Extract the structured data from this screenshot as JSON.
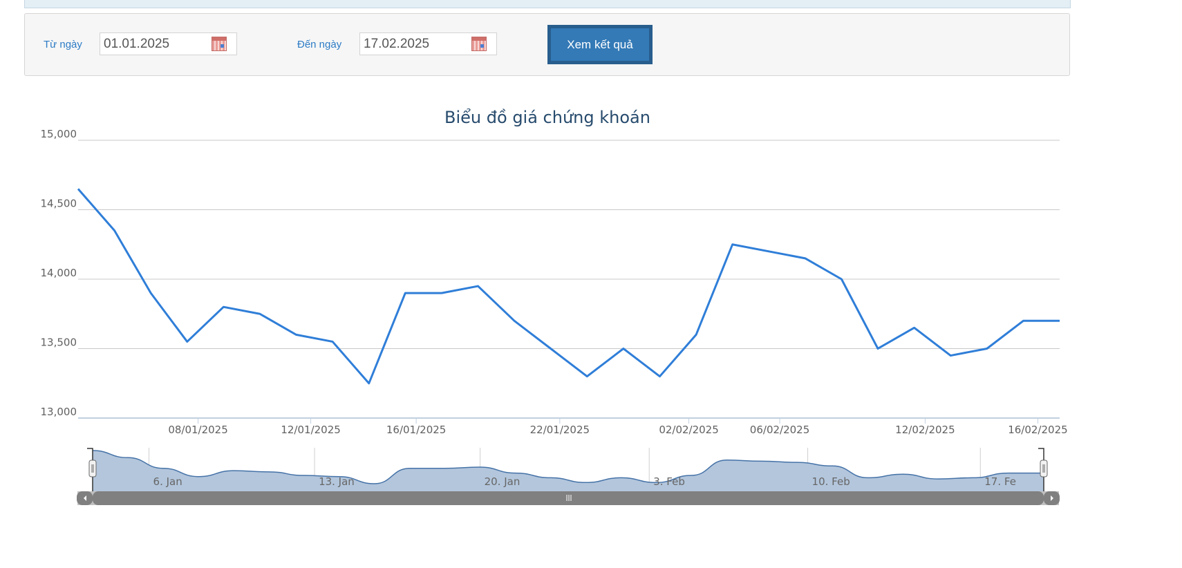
{
  "filter": {
    "from_label": "Từ ngày",
    "from_value": "01.01.2025",
    "to_label": "Đến ngày",
    "to_value": "17.02.2025",
    "submit_label": "Xem kết quả"
  },
  "chart_data": {
    "type": "line",
    "title": "Biểu đồ giá chứng khoán",
    "xlabel": "",
    "ylabel": "",
    "ylim": [
      13000,
      15000
    ],
    "y_ticks": [
      "13,000",
      "13,500",
      "14,000",
      "14,500",
      "15,000"
    ],
    "y_tick_values": [
      13000,
      13500,
      14000,
      14500,
      15000
    ],
    "grid": true,
    "line_color": "#2f7ed8",
    "x": [
      "02/01/2025",
      "03/01/2025",
      "06/01/2025",
      "07/01/2025",
      "08/01/2025",
      "09/01/2025",
      "10/01/2025",
      "13/01/2025",
      "14/01/2025",
      "15/01/2025",
      "16/01/2025",
      "17/01/2025",
      "20/01/2025",
      "21/01/2025",
      "22/01/2025",
      "23/01/2025",
      "24/01/2025",
      "03/02/2025",
      "04/02/2025",
      "05/02/2025",
      "06/02/2025",
      "07/02/2025",
      "10/02/2025",
      "11/02/2025",
      "12/02/2025",
      "13/02/2025",
      "14/02/2025",
      "17/02/2025"
    ],
    "values": [
      14650,
      14350,
      13900,
      13550,
      13800,
      13750,
      13600,
      13550,
      13250,
      13900,
      13900,
      13950,
      13700,
      13500,
      13300,
      13500,
      13300,
      13600,
      14250,
      14200,
      14150,
      14000,
      13500,
      13650,
      13450,
      13500,
      13700,
      13700
    ],
    "x_ticks": [
      {
        "label": "08/01/2025",
        "index": 3.3
      },
      {
        "label": "12/01/2025",
        "index": 6.4
      },
      {
        "label": "16/01/2025",
        "index": 9.3
      },
      {
        "label": "22/01/2025",
        "index": 13.25
      },
      {
        "label": "02/02/2025",
        "index": 16.8
      },
      {
        "label": "06/02/2025",
        "index": 19.3
      },
      {
        "label": "12/02/2025",
        "index": 23.3
      },
      {
        "label": "16/02/2025",
        "index": 26.4
      }
    ],
    "navigator": {
      "ticks": [
        {
          "label": "6. Jan",
          "index": 1.6
        },
        {
          "label": "13. Jan",
          "index": 6.3
        },
        {
          "label": "20. Jan",
          "index": 11.0
        },
        {
          "label": "3. Feb",
          "index": 15.8
        },
        {
          "label": "10. Feb",
          "index": 20.3
        },
        {
          "label": "17. Fe",
          "index": 25.2
        }
      ],
      "fill_color": "#b3c6dc",
      "line_color": "#4572a7"
    }
  }
}
